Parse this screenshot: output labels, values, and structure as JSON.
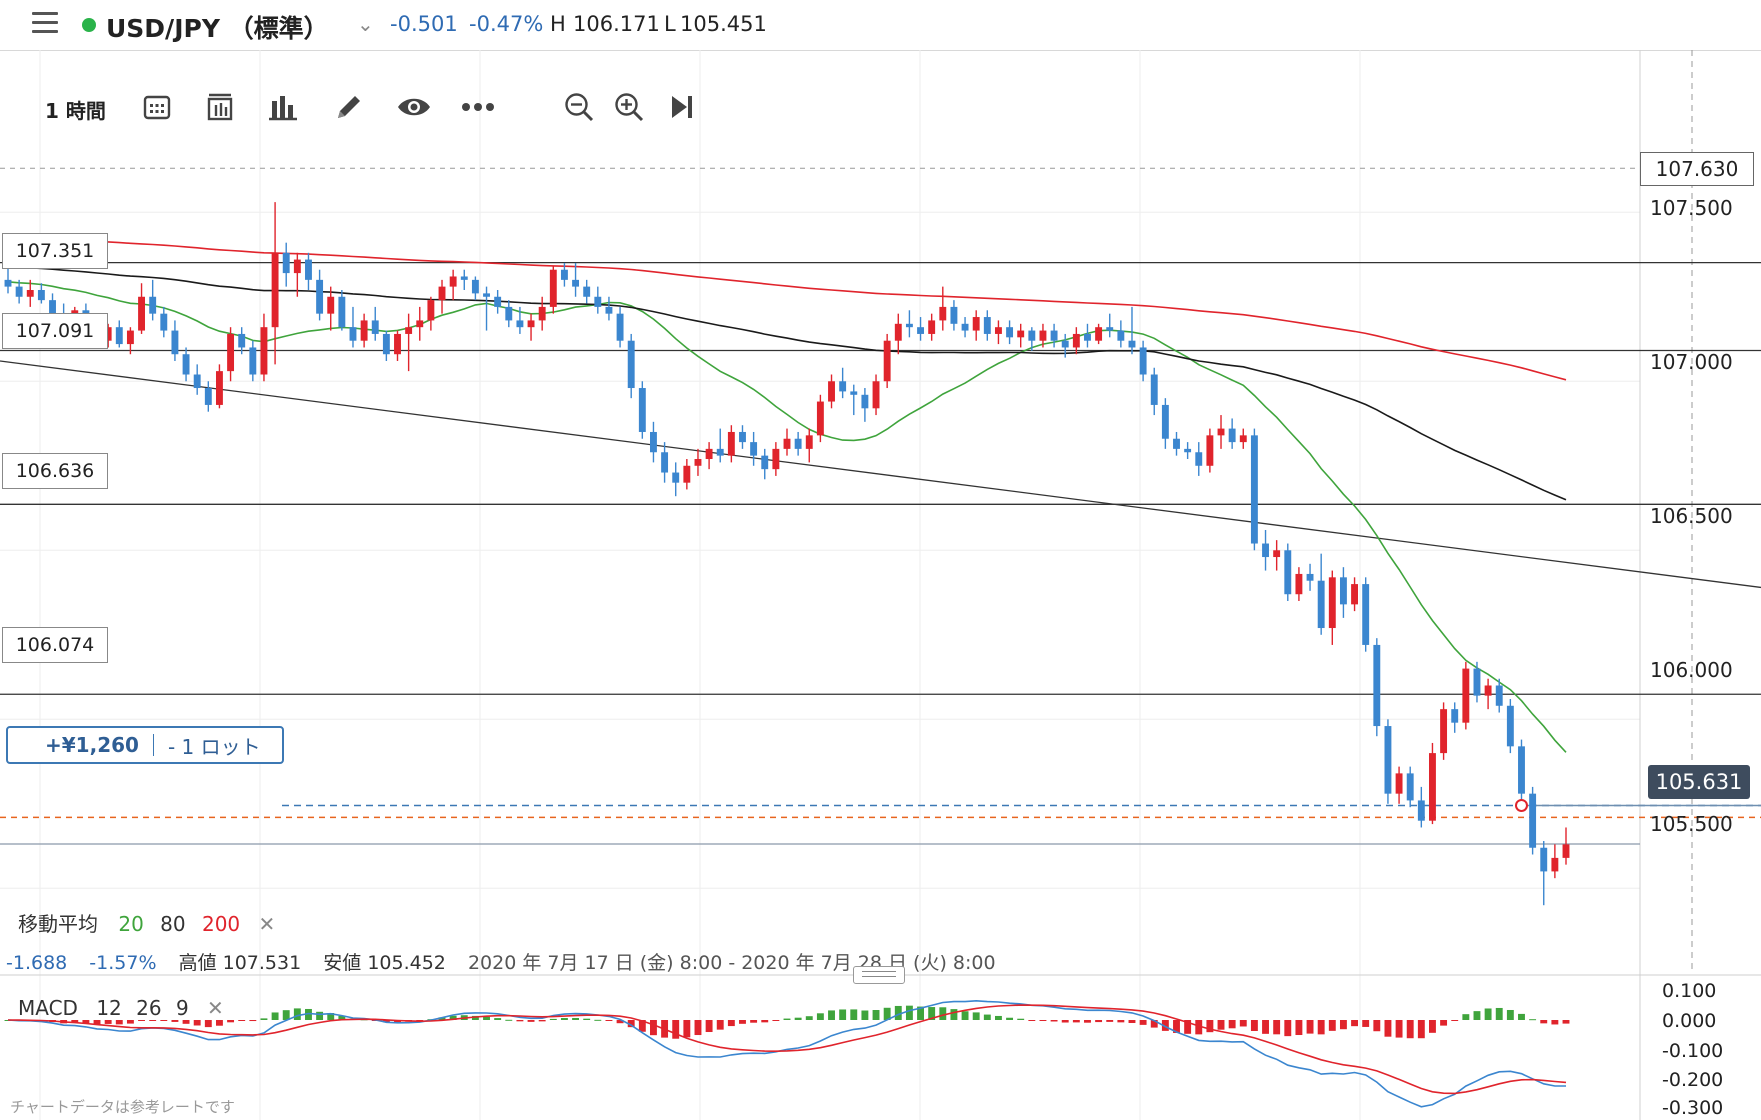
{
  "header": {
    "symbol": "USD/JPY",
    "market": "（標準）",
    "change": "-0.501",
    "change_pct": "-0.47%",
    "high_label": "H",
    "high": "106.171",
    "low_label": "L",
    "low": "105.451",
    "status_color": "#2ab34a"
  },
  "toolbar": {
    "timeframe": "1 時間",
    "icons": [
      "calendar-icon",
      "candle-range-icon",
      "bar-chart-icon",
      "pencil-icon",
      "eye-icon",
      "more-icon",
      "zoom-out-icon",
      "zoom-in-icon",
      "skip-end-icon"
    ]
  },
  "price_axis": {
    "labels": [
      "107.500",
      "107.000",
      "106.500",
      "106.000",
      "105.500"
    ],
    "range": [
      105.14,
      107.98
    ],
    "top_marker": "107.630",
    "current_price": "105.631"
  },
  "levels": [
    {
      "label": "107.351",
      "value": 107.351
    },
    {
      "label": "107.091",
      "value": 107.091
    },
    {
      "label": "106.636",
      "value": 106.636
    },
    {
      "label": "106.074",
      "value": 106.074
    }
  ],
  "position": {
    "pnl": "+¥1,260",
    "lots": "- 1 ロット",
    "entry": 105.745,
    "order": 105.71
  },
  "ma_legend": {
    "label": "移動平均",
    "p20": "20",
    "p80": "80",
    "p200": "200",
    "close": "✕"
  },
  "range_info": {
    "change": "-1.688",
    "change_pct": "-1.57%",
    "high_label": "高値",
    "high": "107.531",
    "low_label": "安値",
    "low": "105.452",
    "period": "2020 年 7月 17 日 (金) 8:00 - 2020 年 7月 28 日 (火) 8:00"
  },
  "macd": {
    "label": "MACD",
    "fast": "12",
    "slow": "26",
    "signal": "9",
    "close": "✕",
    "axis_labels": [
      "0.100",
      "0.000",
      "-0.100",
      "-0.200",
      "-0.300"
    ],
    "range": [
      -0.3,
      0.1
    ]
  },
  "footer": {
    "note": "チャートデータは参考レートです"
  },
  "colors": {
    "up": "#e0242c",
    "down": "#3b86cf",
    "ma20": "#3fa43c",
    "ma80": "#1a1a1a",
    "ma200": "#e0242c",
    "macd": "#3b86cf",
    "signal": "#e0242c"
  },
  "chart_data": {
    "type": "candlestick",
    "timeframe": "1h",
    "ohlc": [
      [
        107.3,
        107.34,
        107.26,
        107.28
      ],
      [
        107.28,
        107.3,
        107.23,
        107.25
      ],
      [
        107.25,
        107.3,
        107.22,
        107.27
      ],
      [
        107.27,
        107.29,
        107.23,
        107.24
      ],
      [
        107.24,
        107.26,
        107.19,
        107.2
      ],
      [
        107.2,
        107.23,
        107.15,
        107.16
      ],
      [
        107.16,
        107.22,
        107.14,
        107.21
      ],
      [
        107.21,
        107.23,
        107.16,
        107.17
      ],
      [
        107.17,
        107.19,
        107.11,
        107.12
      ],
      [
        107.12,
        107.17,
        107.1,
        107.16
      ],
      [
        107.16,
        107.18,
        107.1,
        107.11
      ],
      [
        107.11,
        107.16,
        107.08,
        107.15
      ],
      [
        107.15,
        107.29,
        107.14,
        107.25
      ],
      [
        107.25,
        107.3,
        107.18,
        107.2
      ],
      [
        107.2,
        107.22,
        107.13,
        107.15
      ],
      [
        107.15,
        107.18,
        107.06,
        107.08
      ],
      [
        107.08,
        107.1,
        107.0,
        107.02
      ],
      [
        107.02,
        107.05,
        106.96,
        106.98
      ],
      [
        106.98,
        107.0,
        106.91,
        106.93
      ],
      [
        106.93,
        107.05,
        106.92,
        107.03
      ],
      [
        107.03,
        107.16,
        107.0,
        107.14
      ],
      [
        107.14,
        107.16,
        107.08,
        107.1
      ],
      [
        107.1,
        107.12,
        107.0,
        107.02
      ],
      [
        107.02,
        107.2,
        107.0,
        107.16
      ],
      [
        107.16,
        107.53,
        107.05,
        107.38
      ],
      [
        107.38,
        107.41,
        107.28,
        107.32
      ],
      [
        107.32,
        107.38,
        107.25,
        107.36
      ],
      [
        107.36,
        107.38,
        107.27,
        107.3
      ],
      [
        107.3,
        107.33,
        107.18,
        107.2
      ],
      [
        107.2,
        107.28,
        107.15,
        107.25
      ],
      [
        107.25,
        107.27,
        107.15,
        107.16
      ],
      [
        107.16,
        107.22,
        107.1,
        107.12
      ],
      [
        107.12,
        107.2,
        107.1,
        107.18
      ],
      [
        107.18,
        107.22,
        107.12,
        107.14
      ],
      [
        107.14,
        107.15,
        107.06,
        107.08
      ],
      [
        107.08,
        107.15,
        107.06,
        107.14
      ],
      [
        107.14,
        107.2,
        107.03,
        107.16
      ],
      [
        107.16,
        107.22,
        107.12,
        107.18
      ],
      [
        107.18,
        107.25,
        107.15,
        107.24
      ],
      [
        107.24,
        107.3,
        107.2,
        107.28
      ],
      [
        107.28,
        107.33,
        107.24,
        107.31
      ],
      [
        107.31,
        107.33,
        107.27,
        107.3
      ],
      [
        107.3,
        107.31,
        107.24,
        107.26
      ],
      [
        107.26,
        107.28,
        107.15,
        107.25
      ],
      [
        107.25,
        107.27,
        107.2,
        107.22
      ],
      [
        107.22,
        107.24,
        107.16,
        107.18
      ],
      [
        107.18,
        107.22,
        107.14,
        107.16
      ],
      [
        107.16,
        107.2,
        107.12,
        107.18
      ],
      [
        107.18,
        107.25,
        107.15,
        107.22
      ],
      [
        107.22,
        107.34,
        107.2,
        107.33
      ],
      [
        107.33,
        107.35,
        107.28,
        107.3
      ],
      [
        107.3,
        107.35,
        107.25,
        107.28
      ],
      [
        107.28,
        107.3,
        107.23,
        107.25
      ],
      [
        107.25,
        107.28,
        107.2,
        107.22
      ],
      [
        107.22,
        107.25,
        107.18,
        107.2
      ],
      [
        107.2,
        107.22,
        107.1,
        107.12
      ],
      [
        107.12,
        107.14,
        106.95,
        106.98
      ],
      [
        106.98,
        107.0,
        106.83,
        106.85
      ],
      [
        106.85,
        106.88,
        106.76,
        106.79
      ],
      [
        106.79,
        106.82,
        106.7,
        106.73
      ],
      [
        106.73,
        106.76,
        106.66,
        106.7
      ],
      [
        106.7,
        106.77,
        106.68,
        106.75
      ],
      [
        106.75,
        106.8,
        106.72,
        106.77
      ],
      [
        106.77,
        106.82,
        106.74,
        106.8
      ],
      [
        106.8,
        106.86,
        106.76,
        106.78
      ],
      [
        106.78,
        106.87,
        106.76,
        106.85
      ],
      [
        106.85,
        106.87,
        106.8,
        106.82
      ],
      [
        106.82,
        106.85,
        106.75,
        106.78
      ],
      [
        106.78,
        106.8,
        106.71,
        106.74
      ],
      [
        106.74,
        106.82,
        106.72,
        106.8
      ],
      [
        106.8,
        106.86,
        106.78,
        106.83
      ],
      [
        106.83,
        106.85,
        106.78,
        106.8
      ],
      [
        106.8,
        106.86,
        106.76,
        106.84
      ],
      [
        106.84,
        106.96,
        106.82,
        106.94
      ],
      [
        106.94,
        107.02,
        106.92,
        107.0
      ],
      [
        107.0,
        107.04,
        106.95,
        106.97
      ],
      [
        106.97,
        106.99,
        106.9,
        106.96
      ],
      [
        106.96,
        106.98,
        106.88,
        106.92
      ],
      [
        106.92,
        107.02,
        106.9,
        107.0
      ],
      [
        107.0,
        107.14,
        106.98,
        107.12
      ],
      [
        107.12,
        107.2,
        107.08,
        107.17
      ],
      [
        107.17,
        107.21,
        107.13,
        107.16
      ],
      [
        107.16,
        107.19,
        107.12,
        107.14
      ],
      [
        107.14,
        107.2,
        107.12,
        107.18
      ],
      [
        107.18,
        107.28,
        107.15,
        107.22
      ],
      [
        107.22,
        107.24,
        107.15,
        107.17
      ],
      [
        107.17,
        107.19,
        107.13,
        107.15
      ],
      [
        107.15,
        107.21,
        107.12,
        107.19
      ],
      [
        107.19,
        107.21,
        107.12,
        107.14
      ],
      [
        107.14,
        107.18,
        107.11,
        107.16
      ],
      [
        107.16,
        107.18,
        107.11,
        107.13
      ],
      [
        107.13,
        107.17,
        107.1,
        107.15
      ],
      [
        107.15,
        107.16,
        107.09,
        107.12
      ],
      [
        107.12,
        107.17,
        107.1,
        107.15
      ],
      [
        107.15,
        107.17,
        107.1,
        107.12
      ],
      [
        107.12,
        107.14,
        107.07,
        107.1
      ],
      [
        107.1,
        107.16,
        107.08,
        107.14
      ],
      [
        107.14,
        107.17,
        107.1,
        107.12
      ],
      [
        107.12,
        107.17,
        107.11,
        107.16
      ],
      [
        107.16,
        107.2,
        107.13,
        107.15
      ],
      [
        107.15,
        107.18,
        107.1,
        107.12
      ],
      [
        107.12,
        107.22,
        107.08,
        107.1
      ],
      [
        107.1,
        107.12,
        107.0,
        107.02
      ],
      [
        107.02,
        107.04,
        106.9,
        106.93
      ],
      [
        106.93,
        106.95,
        106.8,
        106.83
      ],
      [
        106.83,
        106.85,
        106.78,
        106.8
      ],
      [
        106.8,
        106.82,
        106.77,
        106.79
      ],
      [
        106.79,
        106.82,
        106.72,
        106.75
      ],
      [
        106.75,
        106.86,
        106.73,
        106.84
      ],
      [
        106.84,
        106.9,
        106.8,
        106.86
      ],
      [
        106.86,
        106.89,
        106.8,
        106.82
      ],
      [
        106.82,
        106.86,
        106.8,
        106.84
      ],
      [
        106.84,
        106.86,
        106.5,
        106.52
      ],
      [
        106.52,
        106.56,
        106.44,
        106.48
      ],
      [
        106.48,
        106.53,
        106.44,
        106.5
      ],
      [
        106.5,
        106.52,
        106.35,
        106.37
      ],
      [
        106.37,
        106.45,
        106.35,
        106.43
      ],
      [
        106.43,
        106.46,
        106.38,
        106.41
      ],
      [
        106.41,
        106.49,
        106.25,
        106.27
      ],
      [
        106.27,
        106.44,
        106.22,
        106.42
      ],
      [
        106.42,
        106.45,
        106.3,
        106.34
      ],
      [
        106.34,
        106.42,
        106.32,
        106.4
      ],
      [
        106.4,
        106.42,
        106.2,
        106.22
      ],
      [
        106.22,
        106.24,
        105.95,
        105.98
      ],
      [
        105.98,
        106.0,
        105.75,
        105.78
      ],
      [
        105.78,
        105.86,
        105.75,
        105.84
      ],
      [
        105.84,
        105.86,
        105.74,
        105.76
      ],
      [
        105.76,
        105.8,
        105.68,
        105.7
      ],
      [
        105.7,
        105.93,
        105.69,
        105.9
      ],
      [
        105.9,
        106.05,
        105.88,
        106.03
      ],
      [
        106.03,
        106.05,
        105.96,
        105.99
      ],
      [
        105.99,
        106.17,
        105.97,
        106.15
      ],
      [
        106.15,
        106.17,
        106.05,
        106.07
      ],
      [
        106.07,
        106.12,
        106.03,
        106.1
      ],
      [
        106.1,
        106.12,
        106.02,
        106.04
      ],
      [
        106.04,
        106.06,
        105.9,
        105.92
      ],
      [
        105.92,
        105.94,
        105.76,
        105.78
      ],
      [
        105.78,
        105.8,
        105.6,
        105.62
      ],
      [
        105.62,
        105.64,
        105.45,
        105.55
      ],
      [
        105.55,
        105.63,
        105.53,
        105.59
      ],
      [
        105.59,
        105.68,
        105.57,
        105.63
      ]
    ],
    "moving_averages": {
      "periods": [
        20,
        80,
        200
      ]
    },
    "trendline": {
      "from": 107.06,
      "to": 106.39
    },
    "macd_histogram_note": "derived from closes",
    "xlabel": "",
    "ylabel": ""
  }
}
